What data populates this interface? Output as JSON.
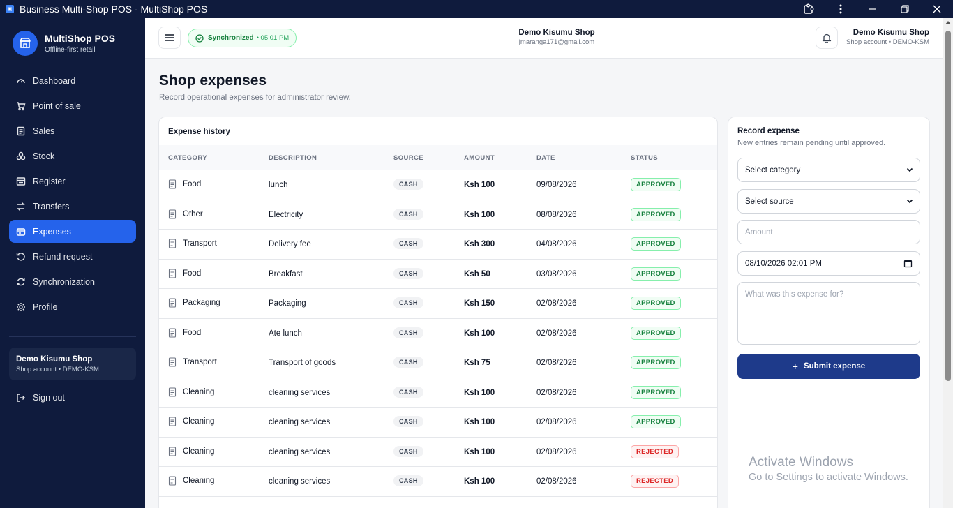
{
  "window": {
    "title": "Business Multi-Shop POS - MultiShop POS",
    "app_icon": "pos-app-icon",
    "controls": [
      "extension-icon",
      "more-icon",
      "minimize-icon",
      "restore-icon",
      "close-icon"
    ]
  },
  "sidebar": {
    "brand_name": "MultiShop POS",
    "brand_tagline": "Offline-first retail",
    "items": [
      {
        "label": "Dashboard",
        "icon": "gauge-icon",
        "active": false
      },
      {
        "label": "Point of sale",
        "icon": "cart-icon",
        "active": false
      },
      {
        "label": "Sales",
        "icon": "receipt-icon",
        "active": false
      },
      {
        "label": "Stock",
        "icon": "boxes-icon",
        "active": false
      },
      {
        "label": "Register",
        "icon": "register-icon",
        "active": false
      },
      {
        "label": "Transfers",
        "icon": "transfer-icon",
        "active": false
      },
      {
        "label": "Expenses",
        "icon": "wallet-icon",
        "active": true
      },
      {
        "label": "Refund request",
        "icon": "undo-icon",
        "active": false
      },
      {
        "label": "Synchronization",
        "icon": "sync-icon",
        "active": false
      },
      {
        "label": "Profile",
        "icon": "gear-icon",
        "active": false
      }
    ],
    "account": {
      "name": "Demo Kisumu Shop",
      "sub": "Shop account • DEMO-KSM"
    },
    "sign_out": "Sign out"
  },
  "header": {
    "sync_label": "Synchronized",
    "sync_time": "• 05:01 PM",
    "center_shop": "Demo Kisumu Shop",
    "center_email": "jmaranga171@gmail.com",
    "right_shop": "Demo Kisumu Shop",
    "right_sub": "Shop account • DEMO-KSM"
  },
  "page": {
    "title": "Shop expenses",
    "subtitle": "Record operational expenses for administrator review."
  },
  "history": {
    "title": "Expense history",
    "columns": [
      "CATEGORY",
      "DESCRIPTION",
      "SOURCE",
      "AMOUNT",
      "DATE",
      "STATUS"
    ],
    "rows": [
      {
        "category": "Food",
        "description": "lunch",
        "source": "CASH",
        "amount": "Ksh 100",
        "date": "09/08/2026",
        "status": "APPROVED"
      },
      {
        "category": "Other",
        "description": "Electricity",
        "source": "CASH",
        "amount": "Ksh 100",
        "date": "08/08/2026",
        "status": "APPROVED"
      },
      {
        "category": "Transport",
        "description": "Delivery fee",
        "source": "CASH",
        "amount": "Ksh 300",
        "date": "04/08/2026",
        "status": "APPROVED"
      },
      {
        "category": "Food",
        "description": "Breakfast",
        "source": "CASH",
        "amount": "Ksh 50",
        "date": "03/08/2026",
        "status": "APPROVED"
      },
      {
        "category": "Packaging",
        "description": "Packaging",
        "source": "CASH",
        "amount": "Ksh 150",
        "date": "02/08/2026",
        "status": "APPROVED"
      },
      {
        "category": "Food",
        "description": "Ate lunch",
        "source": "CASH",
        "amount": "Ksh 100",
        "date": "02/08/2026",
        "status": "APPROVED"
      },
      {
        "category": "Transport",
        "description": "Transport of goods",
        "source": "CASH",
        "amount": "Ksh 75",
        "date": "02/08/2026",
        "status": "APPROVED"
      },
      {
        "category": "Cleaning",
        "description": "cleaning services",
        "source": "CASH",
        "amount": "Ksh 100",
        "date": "02/08/2026",
        "status": "APPROVED"
      },
      {
        "category": "Cleaning",
        "description": "cleaning services",
        "source": "CASH",
        "amount": "Ksh 100",
        "date": "02/08/2026",
        "status": "APPROVED"
      },
      {
        "category": "Cleaning",
        "description": "cleaning services",
        "source": "CASH",
        "amount": "Ksh 100",
        "date": "02/08/2026",
        "status": "REJECTED"
      },
      {
        "category": "Cleaning",
        "description": "cleaning services",
        "source": "CASH",
        "amount": "Ksh 100",
        "date": "02/08/2026",
        "status": "REJECTED"
      }
    ]
  },
  "form": {
    "title": "Record expense",
    "subtitle": "New entries remain pending until approved.",
    "category_value": "Select category",
    "source_value": "Select source",
    "amount_placeholder": "Amount",
    "datetime_value": "08/10/2026 02:01 PM",
    "note_placeholder": "What was this expense for?",
    "submit_label": "Submit expense"
  },
  "watermark": {
    "line1": "Activate Windows",
    "line2": "Go to Settings to activate Windows."
  },
  "colors": {
    "sidebar_bg": "#0f1b3d",
    "accent": "#2563eb",
    "submit_bg": "#1e3a8a",
    "approved": "#15803d",
    "rejected": "#dc2626"
  }
}
